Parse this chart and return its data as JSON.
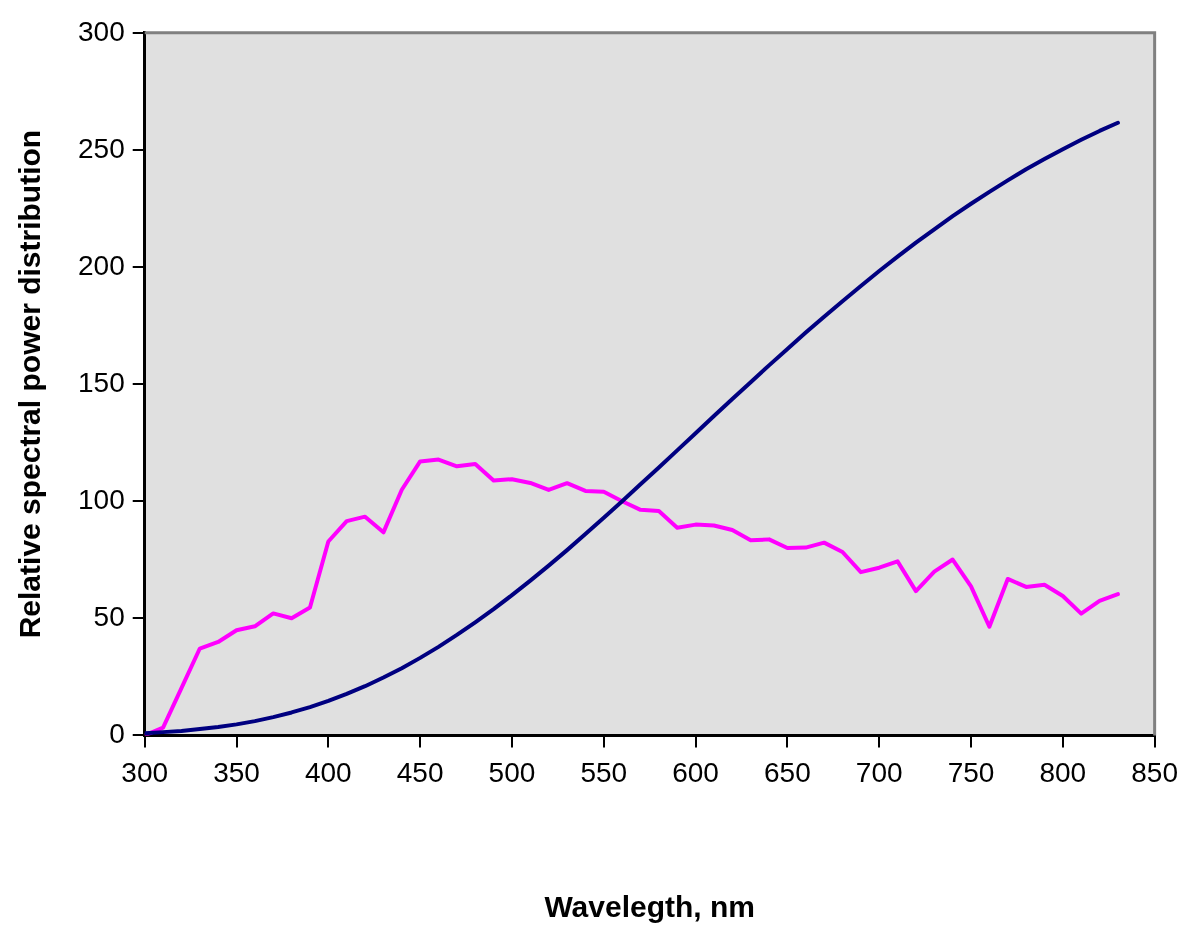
{
  "chart_data": {
    "type": "line",
    "xlabel": "Wavelegth, nm",
    "ylabel": "Relative spectral power distribution",
    "x": [
      300,
      310,
      320,
      330,
      340,
      350,
      360,
      370,
      380,
      390,
      400,
      410,
      420,
      430,
      440,
      450,
      460,
      470,
      480,
      490,
      500,
      510,
      520,
      530,
      540,
      550,
      560,
      570,
      580,
      590,
      600,
      610,
      620,
      630,
      640,
      650,
      660,
      670,
      680,
      690,
      700,
      710,
      720,
      730,
      740,
      750,
      760,
      770,
      780,
      790,
      800,
      810,
      820,
      830
    ],
    "series": [
      {
        "color": "#000080",
        "values": [
          0.9,
          1.4,
          1.9,
          2.7,
          3.6,
          4.7,
          6.1,
          7.8,
          9.8,
          12.1,
          14.7,
          17.7,
          21,
          24.7,
          28.7,
          33.1,
          37.8,
          42.9,
          48.3,
          53.9,
          59.9,
          66.1,
          72.5,
          79.1,
          86,
          92.9,
          100,
          107.2,
          114.4,
          121.7,
          129,
          136.4,
          143.6,
          150.8,
          158,
          165,
          172,
          178.8,
          185.4,
          191.9,
          198.3,
          204.4,
          210.4,
          216.1,
          221.7,
          227,
          232.1,
          237,
          241.7,
          246.1,
          250.3,
          254.3,
          258.1,
          261.6
        ]
      },
      {
        "color": "#ff00ff",
        "values": [
          0,
          3.3,
          20.2,
          37.1,
          39.9,
          44.9,
          46.6,
          52.1,
          50,
          54.6,
          82.8,
          91.5,
          93.4,
          86.7,
          104.9,
          117,
          117.8,
          114.9,
          115.9,
          108.8,
          109.4,
          107.8,
          104.8,
          107.7,
          104.4,
          104,
          100,
          96.3,
          95.8,
          88.7,
          90,
          89.6,
          87.7,
          83.3,
          83.7,
          80,
          80.2,
          82.3,
          78.3,
          69.7,
          71.6,
          74.3,
          61.6,
          69.9,
          75.1,
          63.6,
          46.4,
          66.8,
          63.4,
          64.3,
          59.5,
          52,
          57.4,
          60.3
        ]
      }
    ],
    "xlim": [
      300,
      850
    ],
    "xticks": [
      300,
      350,
      400,
      450,
      500,
      550,
      600,
      650,
      700,
      750,
      800,
      850
    ],
    "ylim": [
      0,
      300
    ],
    "yticks": [
      0,
      50,
      100,
      150,
      200,
      250,
      300
    ],
    "grid": false,
    "legend": false,
    "marker": "none",
    "line_style": "solid"
  }
}
